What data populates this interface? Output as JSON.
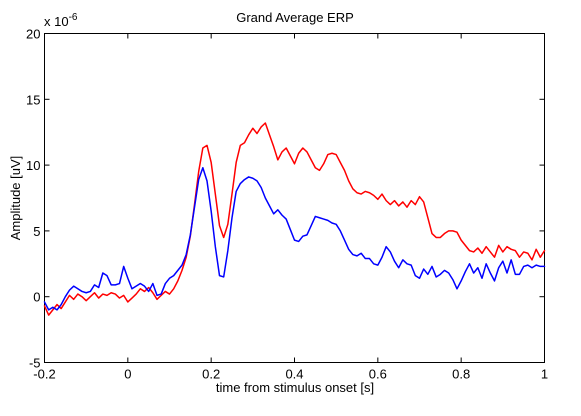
{
  "chart_data": {
    "type": "line",
    "title": "Grand Average ERP",
    "xlabel": "time from stimulus onset [s]",
    "ylabel": "Amplitude [uV]",
    "y_multiplier": "x 10",
    "y_exponent": "-6",
    "xlim": [
      -0.2,
      1.0
    ],
    "ylim": [
      -5,
      20
    ],
    "xticks": [
      -0.2,
      0,
      0.2,
      0.4,
      0.6,
      0.8,
      1
    ],
    "xtick_labels": [
      "-0.2",
      "0",
      "0.2",
      "0.4",
      "0.6",
      "0.8",
      "1"
    ],
    "yticks": [
      -5,
      0,
      5,
      10,
      15,
      20
    ],
    "ytick_labels": [
      "-5",
      "0",
      "5",
      "10",
      "15",
      "20"
    ],
    "grid": false,
    "legend": "none",
    "series": [
      {
        "color": "#ff0000",
        "x": [
          -0.2,
          -0.19,
          -0.18,
          -0.17,
          -0.16,
          -0.15,
          -0.14,
          -0.13,
          -0.12,
          -0.11,
          -0.1,
          -0.09,
          -0.08,
          -0.07,
          -0.06,
          -0.05,
          -0.04,
          -0.03,
          -0.02,
          -0.01,
          0.0,
          0.01,
          0.02,
          0.03,
          0.04,
          0.05,
          0.06,
          0.07,
          0.08,
          0.09,
          0.1,
          0.11,
          0.12,
          0.13,
          0.14,
          0.15,
          0.16,
          0.17,
          0.18,
          0.19,
          0.2,
          0.21,
          0.22,
          0.23,
          0.24,
          0.25,
          0.26,
          0.27,
          0.28,
          0.29,
          0.3,
          0.31,
          0.32,
          0.33,
          0.34,
          0.35,
          0.36,
          0.37,
          0.38,
          0.39,
          0.4,
          0.41,
          0.42,
          0.43,
          0.44,
          0.45,
          0.46,
          0.47,
          0.48,
          0.49,
          0.5,
          0.51,
          0.52,
          0.53,
          0.54,
          0.55,
          0.56,
          0.57,
          0.58,
          0.59,
          0.6,
          0.61,
          0.62,
          0.63,
          0.64,
          0.65,
          0.66,
          0.67,
          0.68,
          0.69,
          0.7,
          0.71,
          0.72,
          0.73,
          0.74,
          0.75,
          0.76,
          0.77,
          0.78,
          0.79,
          0.8,
          0.81,
          0.82,
          0.83,
          0.84,
          0.85,
          0.86,
          0.87,
          0.88,
          0.89,
          0.9,
          0.91,
          0.92,
          0.93,
          0.94,
          0.95,
          0.96,
          0.97,
          0.98,
          0.99,
          1.0
        ],
        "values": [
          -0.7,
          -1.4,
          -1.0,
          -0.6,
          -0.9,
          -0.4,
          0.1,
          -0.2,
          0.2,
          0.0,
          -0.3,
          0.0,
          0.3,
          -0.1,
          0.2,
          0.1,
          0.3,
          0.2,
          -0.1,
          0.1,
          -0.4,
          -0.1,
          0.2,
          0.6,
          0.4,
          0.7,
          0.3,
          -0.2,
          0.1,
          0.4,
          0.2,
          0.6,
          1.2,
          2.0,
          3.0,
          4.6,
          7.0,
          9.5,
          11.3,
          11.5,
          10.2,
          7.8,
          5.4,
          4.5,
          5.5,
          7.8,
          10.2,
          11.5,
          11.7,
          12.3,
          12.8,
          12.4,
          12.9,
          13.2,
          12.3,
          11.4,
          10.4,
          11.0,
          11.3,
          10.7,
          10.1,
          10.9,
          11.3,
          11.0,
          10.4,
          9.8,
          9.6,
          10.1,
          10.8,
          10.9,
          10.8,
          10.2,
          9.6,
          8.8,
          8.2,
          7.9,
          7.8,
          8.0,
          7.9,
          7.7,
          7.4,
          7.8,
          7.3,
          7.0,
          7.3,
          6.9,
          7.2,
          6.8,
          7.3,
          7.0,
          7.6,
          7.2,
          6.0,
          4.8,
          4.5,
          4.5,
          4.8,
          5.0,
          5.0,
          4.9,
          4.3,
          3.9,
          3.5,
          3.4,
          3.7,
          3.3,
          3.8,
          3.4,
          3.0,
          3.9,
          3.4,
          3.8,
          3.6,
          3.5,
          3.0,
          3.4,
          3.3,
          2.8,
          3.6,
          3.0,
          3.5
        ]
      },
      {
        "color": "#0000ff",
        "x": [
          -0.2,
          -0.19,
          -0.18,
          -0.17,
          -0.16,
          -0.15,
          -0.14,
          -0.13,
          -0.12,
          -0.11,
          -0.1,
          -0.09,
          -0.08,
          -0.07,
          -0.06,
          -0.05,
          -0.04,
          -0.03,
          -0.02,
          -0.01,
          0.0,
          0.01,
          0.02,
          0.03,
          0.04,
          0.05,
          0.06,
          0.07,
          0.08,
          0.09,
          0.1,
          0.11,
          0.12,
          0.13,
          0.14,
          0.15,
          0.16,
          0.17,
          0.18,
          0.19,
          0.2,
          0.21,
          0.22,
          0.23,
          0.24,
          0.25,
          0.26,
          0.27,
          0.28,
          0.29,
          0.3,
          0.31,
          0.32,
          0.33,
          0.34,
          0.35,
          0.36,
          0.37,
          0.38,
          0.39,
          0.4,
          0.41,
          0.42,
          0.43,
          0.44,
          0.45,
          0.46,
          0.47,
          0.48,
          0.49,
          0.5,
          0.51,
          0.52,
          0.53,
          0.54,
          0.55,
          0.56,
          0.57,
          0.58,
          0.59,
          0.6,
          0.61,
          0.62,
          0.63,
          0.64,
          0.65,
          0.66,
          0.67,
          0.68,
          0.69,
          0.7,
          0.71,
          0.72,
          0.73,
          0.74,
          0.75,
          0.76,
          0.77,
          0.78,
          0.79,
          0.8,
          0.81,
          0.82,
          0.83,
          0.84,
          0.85,
          0.86,
          0.87,
          0.88,
          0.89,
          0.9,
          0.91,
          0.92,
          0.93,
          0.94,
          0.95,
          0.96,
          0.97,
          0.98,
          0.99,
          1.0
        ],
        "values": [
          -0.4,
          -1.0,
          -0.8,
          -1.0,
          -0.6,
          0.0,
          0.5,
          0.8,
          0.6,
          0.4,
          0.3,
          0.4,
          0.9,
          0.7,
          1.8,
          1.6,
          0.9,
          0.9,
          1.0,
          2.3,
          1.4,
          0.6,
          0.8,
          1.0,
          0.8,
          0.4,
          1.0,
          0.1,
          0.2,
          1.0,
          1.4,
          1.6,
          2.0,
          2.4,
          3.2,
          4.7,
          6.8,
          8.9,
          9.8,
          8.8,
          6.5,
          3.8,
          1.6,
          1.5,
          3.5,
          6.0,
          8.0,
          8.6,
          8.9,
          9.1,
          9.0,
          8.8,
          8.3,
          7.5,
          6.9,
          6.3,
          6.6,
          6.2,
          5.9,
          5.1,
          4.3,
          4.2,
          4.6,
          4.7,
          5.4,
          6.1,
          6.0,
          5.9,
          5.8,
          5.6,
          5.5,
          5.0,
          4.3,
          3.6,
          3.2,
          3.1,
          3.3,
          2.9,
          2.9,
          2.5,
          2.4,
          3.0,
          3.8,
          3.4,
          2.7,
          2.2,
          2.8,
          2.5,
          2.4,
          1.6,
          1.4,
          2.1,
          1.7,
          2.3,
          1.5,
          1.7,
          2.0,
          1.8,
          1.3,
          0.6,
          1.2,
          1.9,
          2.5,
          1.8,
          2.2,
          1.4,
          2.5,
          1.8,
          1.2,
          2.2,
          2.7,
          1.8,
          2.8,
          1.7,
          1.7,
          2.3,
          2.4,
          2.2,
          2.4,
          2.3,
          2.3
        ]
      }
    ]
  }
}
